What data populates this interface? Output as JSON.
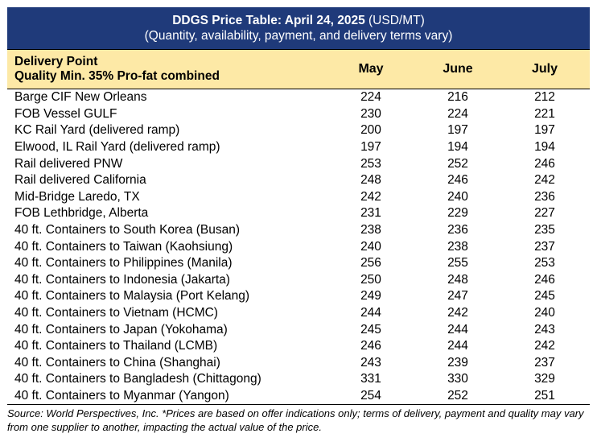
{
  "title": {
    "bold": "DDGS Price Table: April 24, 2025",
    "unit": " (USD/MT)",
    "subtitle": "(Quantity, availability, payment, and delivery terms vary)"
  },
  "header": {
    "point_line1": "Delivery Point",
    "point_line2": "Quality Min. 35% Pro-fat combined",
    "col_may": "May",
    "col_june": "June",
    "col_july": "July"
  },
  "rows": [
    {
      "point": "Barge CIF New Orleans",
      "may": "224",
      "june": "216",
      "july": "212"
    },
    {
      "point": "FOB Vessel GULF",
      "may": "230",
      "june": "224",
      "july": "221"
    },
    {
      "point": "KC Rail Yard (delivered ramp)",
      "may": "200",
      "june": "197",
      "july": "197"
    },
    {
      "point": "Elwood, IL Rail Yard (delivered ramp)",
      "may": "197",
      "june": "194",
      "july": "194"
    },
    {
      "point": "Rail delivered PNW",
      "may": "253",
      "june": "252",
      "july": "246"
    },
    {
      "point": "Rail delivered California",
      "may": "248",
      "june": "246",
      "july": "242"
    },
    {
      "point": "Mid-Bridge Laredo, TX",
      "may": "242",
      "june": "240",
      "july": "236"
    },
    {
      "point": "FOB Lethbridge, Alberta",
      "may": "231",
      "june": "229",
      "july": "227"
    },
    {
      "point": "40 ft. Containers to South Korea (Busan)",
      "may": "238",
      "june": "236",
      "july": "235"
    },
    {
      "point": "40 ft. Containers to Taiwan (Kaohsiung)",
      "may": "240",
      "june": "238",
      "july": "237"
    },
    {
      "point": "40 ft. Containers to Philippines (Manila)",
      "may": "256",
      "june": "255",
      "july": "253"
    },
    {
      "point": "40 ft. Containers to Indonesia (Jakarta)",
      "may": "250",
      "june": "248",
      "july": "246"
    },
    {
      "point": "40 ft. Containers to Malaysia (Port Kelang)",
      "may": "249",
      "june": "247",
      "july": "245"
    },
    {
      "point": "40 ft. Containers to Vietnam (HCMC)",
      "may": "244",
      "june": "242",
      "july": "240"
    },
    {
      "point": "40 ft. Containers to Japan (Yokohama)",
      "may": "245",
      "june": "244",
      "july": "243"
    },
    {
      "point": "40 ft. Containers to Thailand (LCMB)",
      "may": "246",
      "june": "244",
      "july": "242"
    },
    {
      "point": "40 ft. Containers to China (Shanghai)",
      "may": "243",
      "june": "239",
      "july": "237"
    },
    {
      "point": "40 ft. Containers to Bangladesh (Chittagong)",
      "may": "331",
      "june": "330",
      "july": "329"
    },
    {
      "point": "40 ft. Containers to Myanmar (Yangon)",
      "may": "254",
      "june": "252",
      "july": "251"
    }
  ],
  "footer": "Source: World Perspectives, Inc. *Prices are based on offer indications only; terms of delivery, payment and quality may vary from one supplier to another, impacting the actual value of the price.",
  "colors": {
    "title_bg": "#1f3a7a",
    "header_bg": "#fde9a6"
  }
}
